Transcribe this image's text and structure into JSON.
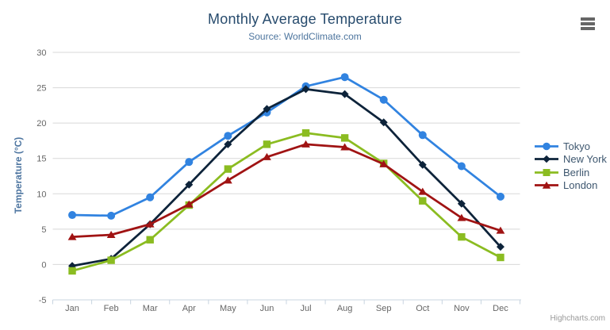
{
  "header": {
    "title": "Monthly Average Temperature",
    "subtitle": "Source: WorldClimate.com"
  },
  "chart_data": {
    "type": "line",
    "title": "Monthly Average Temperature",
    "subtitle": "Source: WorldClimate.com",
    "categories": [
      "Jan",
      "Feb",
      "Mar",
      "Apr",
      "May",
      "Jun",
      "Jul",
      "Aug",
      "Sep",
      "Oct",
      "Nov",
      "Dec"
    ],
    "series": [
      {
        "name": "Tokyo",
        "marker": "circle",
        "color": "#3183e0",
        "values": [
          7.0,
          6.9,
          9.5,
          14.5,
          18.2,
          21.5,
          25.2,
          26.5,
          23.3,
          18.3,
          13.9,
          9.6
        ]
      },
      {
        "name": "New York",
        "marker": "diamond",
        "color": "#0d233a",
        "values": [
          -0.2,
          0.8,
          5.7,
          11.3,
          17.0,
          22.0,
          24.8,
          24.1,
          20.1,
          14.1,
          8.6,
          2.5
        ]
      },
      {
        "name": "Berlin",
        "marker": "square",
        "color": "#8bbc21",
        "values": [
          -0.9,
          0.6,
          3.5,
          8.4,
          13.5,
          17.0,
          18.6,
          17.9,
          14.3,
          9.0,
          3.9,
          1.0
        ]
      },
      {
        "name": "London",
        "marker": "triangle",
        "color": "#a01313",
        "values": [
          3.9,
          4.2,
          5.7,
          8.5,
          11.9,
          15.2,
          17.0,
          16.6,
          14.2,
          10.3,
          6.6,
          4.8
        ]
      }
    ],
    "xlabel": "",
    "ylabel": "Temperature (°C)",
    "ylim": [
      -5,
      30
    ],
    "yticks": [
      -5,
      0,
      5,
      10,
      15,
      20,
      25,
      30
    ],
    "grid": true,
    "legend_position": "right"
  },
  "colors": {
    "grid_line": "#d8d8d8",
    "axis_line": "#c8d4e0",
    "tick_label": "#666666",
    "title": "#274b6d",
    "subtitle": "#4d759e",
    "axis_title": "#4d75a0",
    "legend_text": "#3e576f",
    "credits_text": "#999999",
    "menu_icon": "#666666"
  },
  "credits": {
    "label": "Highcharts.com"
  },
  "menu": {
    "name": "chart context menu"
  }
}
